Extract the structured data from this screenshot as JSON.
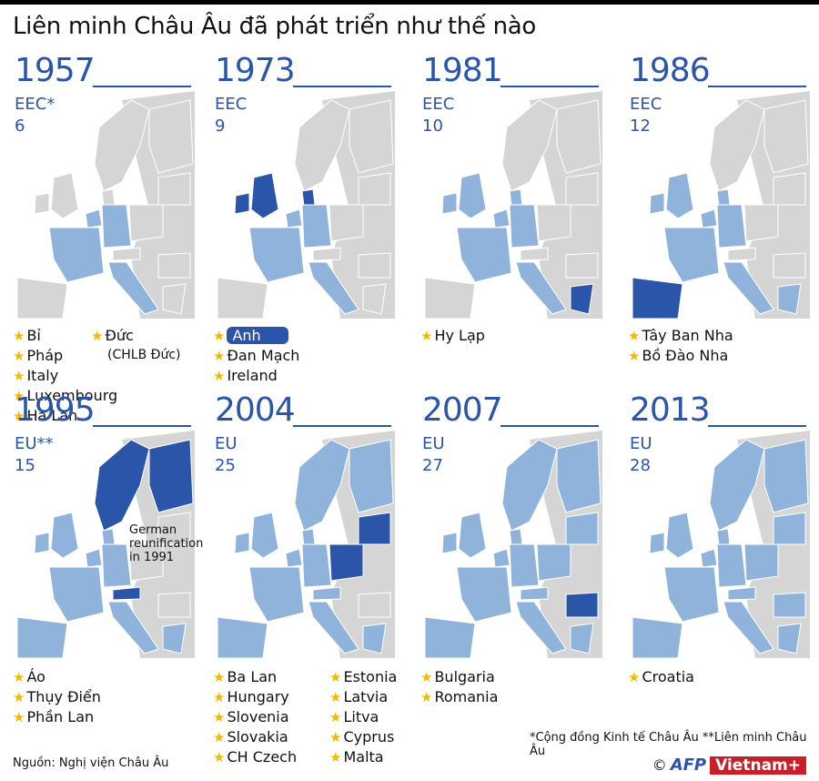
{
  "title": "Liên minh Châu Âu đã phát triển như thế nào",
  "colors": {
    "accent": "#2a55a8",
    "member": "#8fb3da",
    "new_member": "#2a55a8",
    "non_member": "#d5d5d5",
    "star": "#f5b800",
    "vn_red": "#c8202b"
  },
  "panels": [
    {
      "year": "1957",
      "org": "EEC*",
      "count": "6",
      "new_members": [
        "Bỉ",
        "Pháp",
        "Italy",
        "Luxembourg",
        "Hà Lan",
        "Đức"
      ],
      "extra": "(CHLB Đức)"
    },
    {
      "year": "1973",
      "org": "EEC",
      "count": "9",
      "new_members": [
        "Anh",
        "Đan Mạch",
        "Ireland"
      ]
    },
    {
      "year": "1981",
      "org": "EEC",
      "count": "10",
      "new_members": [
        "Hy Lạp"
      ]
    },
    {
      "year": "1986",
      "org": "EEC",
      "count": "12",
      "new_members": [
        "Tây Ban Nha",
        "Bồ Đào Nha"
      ]
    },
    {
      "year": "1995",
      "org": "EU**",
      "count": "15",
      "new_members": [
        "Áo",
        "Thụy Điển",
        "Phần Lan"
      ],
      "annotation": "German reunification in 1991"
    },
    {
      "year": "2004",
      "org": "EU",
      "count": "25",
      "new_members": [
        "Ba Lan",
        "Hungary",
        "Slovenia",
        "Slovakia",
        "CH Czech",
        "Estonia",
        "Latvia",
        "Litva",
        "Cyprus",
        "Malta"
      ]
    },
    {
      "year": "2007",
      "org": "EU",
      "count": "27",
      "new_members": [
        "Bulgaria",
        "Romania"
      ]
    },
    {
      "year": "2013",
      "org": "EU",
      "count": "28",
      "new_members": [
        "Croatia"
      ]
    }
  ],
  "footnote": "*Cộng đồng Kinh tế Châu Âu  **Liên minh Châu Âu",
  "source": "Nguồn: Nghị viện Châu Âu",
  "credit": {
    "copyright": "©",
    "afp": "AFP",
    "vietnam": "Vietnam+"
  }
}
